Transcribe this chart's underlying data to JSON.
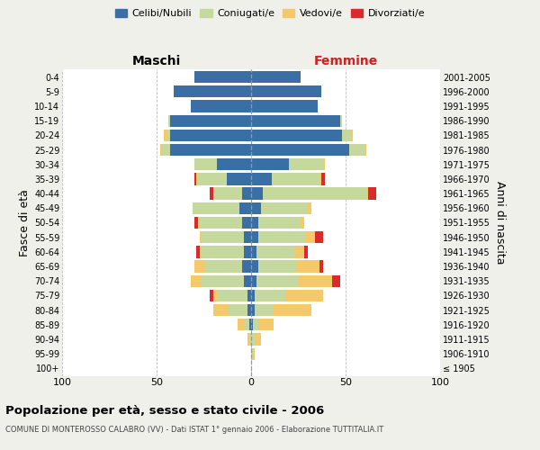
{
  "age_groups": [
    "100+",
    "95-99",
    "90-94",
    "85-89",
    "80-84",
    "75-79",
    "70-74",
    "65-69",
    "60-64",
    "55-59",
    "50-54",
    "45-49",
    "40-44",
    "35-39",
    "30-34",
    "25-29",
    "20-24",
    "15-19",
    "10-14",
    "5-9",
    "0-4"
  ],
  "birth_years": [
    "≤ 1905",
    "1906-1910",
    "1911-1915",
    "1916-1920",
    "1921-1925",
    "1926-1930",
    "1931-1935",
    "1936-1940",
    "1941-1945",
    "1946-1950",
    "1951-1955",
    "1956-1960",
    "1961-1965",
    "1966-1970",
    "1971-1975",
    "1976-1980",
    "1981-1985",
    "1986-1990",
    "1991-1995",
    "1996-2000",
    "2001-2005"
  ],
  "maschi": {
    "celibi": [
      0,
      0,
      0,
      1,
      2,
      2,
      4,
      5,
      4,
      4,
      5,
      6,
      5,
      13,
      18,
      43,
      43,
      43,
      32,
      41,
      30
    ],
    "coniugati": [
      0,
      0,
      1,
      3,
      10,
      16,
      22,
      20,
      22,
      22,
      22,
      25,
      15,
      15,
      12,
      4,
      2,
      1,
      0,
      0,
      0
    ],
    "vedovi": [
      0,
      0,
      1,
      3,
      8,
      2,
      6,
      5,
      1,
      1,
      1,
      0,
      0,
      1,
      0,
      1,
      1,
      0,
      0,
      0,
      0
    ],
    "divorziati": [
      0,
      0,
      0,
      0,
      0,
      2,
      0,
      0,
      2,
      0,
      2,
      0,
      2,
      1,
      0,
      0,
      0,
      0,
      0,
      0,
      0
    ]
  },
  "femmine": {
    "nubili": [
      0,
      0,
      0,
      1,
      2,
      2,
      3,
      4,
      3,
      4,
      4,
      5,
      6,
      11,
      20,
      52,
      48,
      47,
      35,
      37,
      26
    ],
    "coniugate": [
      0,
      1,
      2,
      3,
      10,
      16,
      22,
      20,
      20,
      25,
      22,
      25,
      55,
      25,
      18,
      8,
      5,
      1,
      0,
      0,
      0
    ],
    "vedove": [
      0,
      1,
      3,
      8,
      20,
      20,
      18,
      12,
      5,
      5,
      2,
      2,
      1,
      1,
      1,
      1,
      1,
      0,
      0,
      0,
      0
    ],
    "divorziate": [
      0,
      0,
      0,
      0,
      0,
      0,
      4,
      2,
      2,
      4,
      0,
      0,
      4,
      2,
      0,
      0,
      0,
      0,
      0,
      0,
      0
    ]
  },
  "colors": {
    "celibi": "#3A6EA5",
    "coniugati": "#C5D89D",
    "vedovi": "#F5C96A",
    "divorziati": "#D92B2B"
  },
  "xlim": 100,
  "title": "Popolazione per età, sesso e stato civile - 2006",
  "subtitle": "COMUNE DI MONTEROSSO CALABRO (VV) - Dati ISTAT 1° gennaio 2006 - Elaborazione TUTTITALIA.IT",
  "ylabel": "Fasce di età",
  "ylabel2": "Anni di nascita",
  "bg_color": "#f0f0eb",
  "plot_bg": "#ffffff",
  "maschi_label_color": "#000000",
  "femmine_label_color": "#cc2222"
}
